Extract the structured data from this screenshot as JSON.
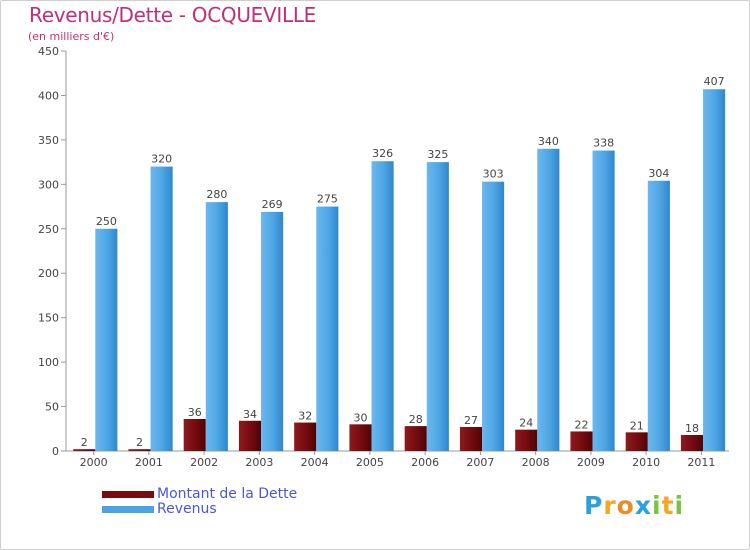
{
  "header": {
    "title": "Revenus/Dette - OCQUEVILLE",
    "subtitle": "(en milliers d'€)"
  },
  "chart_data": {
    "type": "bar",
    "title": "Revenus/Dette - OCQUEVILLE",
    "ylabel": "(en milliers d'€)",
    "xlabel": "",
    "ylim": [
      0,
      450
    ],
    "yticks": [
      0,
      50,
      100,
      150,
      200,
      250,
      300,
      350,
      400,
      450
    ],
    "grid": false,
    "legend_position": "bottom-left",
    "categories": [
      "2000",
      "2001",
      "2002",
      "2003",
      "2004",
      "2005",
      "2006",
      "2007",
      "2008",
      "2009",
      "2010",
      "2011"
    ],
    "series": [
      {
        "name": "Montant de la Dette",
        "color": "#7a0b10",
        "values": [
          2,
          2,
          36,
          34,
          32,
          30,
          28,
          27,
          24,
          22,
          21,
          18
        ]
      },
      {
        "name": "Revenus",
        "color": "#4aa3e3",
        "values": [
          250,
          320,
          280,
          269,
          275,
          326,
          325,
          303,
          340,
          338,
          304,
          407
        ]
      }
    ]
  },
  "legend": {
    "items": [
      {
        "label": "Montant de la Dette",
        "color": "#7a0b10"
      },
      {
        "label": "Revenus",
        "color": "#4aa3e3"
      }
    ]
  },
  "brand": {
    "letters": [
      "P",
      "r",
      "o",
      "x",
      "i",
      "t",
      "i"
    ],
    "colors": [
      "#2aa0de",
      "#f5a623",
      "#f08a24",
      "#2aa0de",
      "#7dc242",
      "#f5a623",
      "#7dc242"
    ]
  }
}
